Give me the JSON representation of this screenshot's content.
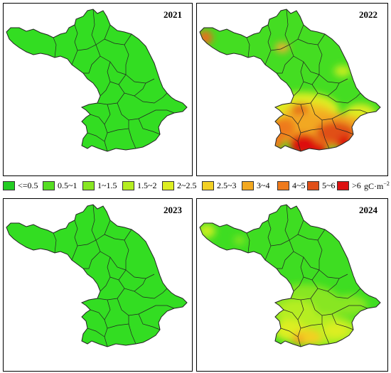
{
  "panels": [
    {
      "year": "2021"
    },
    {
      "year": "2022"
    },
    {
      "year": "2023"
    },
    {
      "year": "2024"
    }
  ],
  "legend": {
    "classes": [
      {
        "label": "<=0.5",
        "color": "#22cc22"
      },
      {
        "label": "0.5~1",
        "color": "#55dd22"
      },
      {
        "label": "1~1.5",
        "color": "#88e622"
      },
      {
        "label": "1.5~2",
        "color": "#b5ee22"
      },
      {
        "label": "2~2.5",
        "color": "#ddee22"
      },
      {
        "label": "2.5~3",
        "color": "#f2d024"
      },
      {
        "label": "3~4",
        "color": "#f2a820"
      },
      {
        "label": "4~5",
        "color": "#ee7a1c"
      },
      {
        "label": "5~6",
        "color": "#e04f18"
      },
      {
        "label": ">6",
        "color": "#dd1111"
      }
    ],
    "unit_prefix": "gC·m",
    "unit_exp": "−2"
  },
  "colors": {
    "base": "#33dd22",
    "boundary": "#222222",
    "background": "#ffffff"
  }
}
